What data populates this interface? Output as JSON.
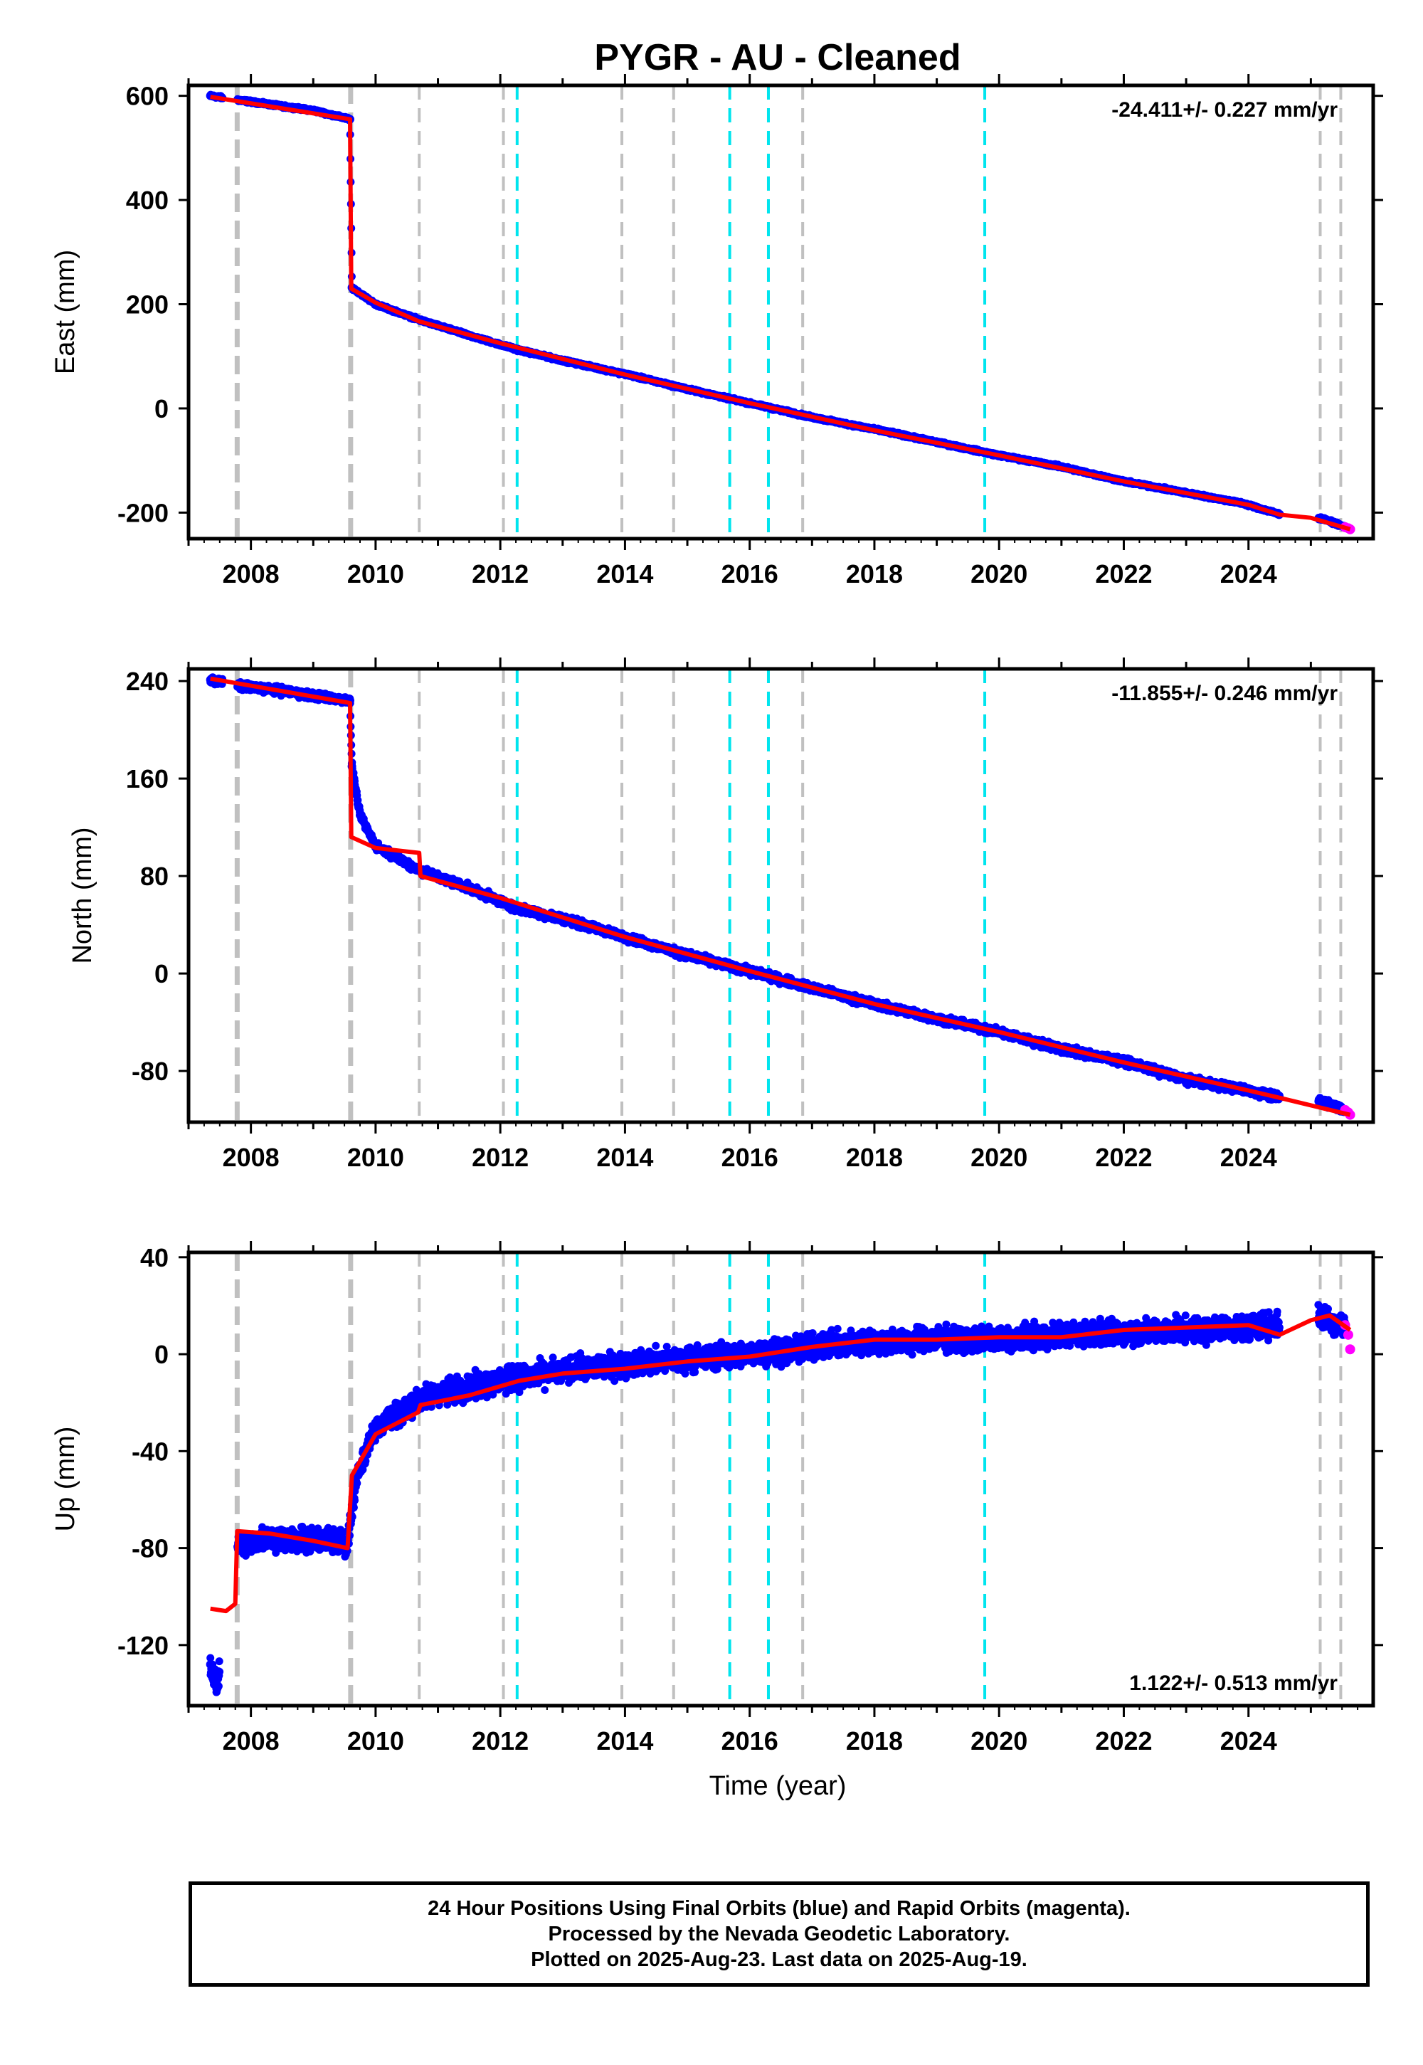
{
  "title": "PYGR  - AU - Cleaned",
  "colors": {
    "final": "#0000ff",
    "rapid": "#ff00ff",
    "model": "#ff0000",
    "equip_change": "#c0c0c0",
    "earthquake": "#00e5ee"
  },
  "x_axis": {
    "label": "Time (year)",
    "range": [
      2007.0,
      2026.0
    ],
    "tick_labels": [
      "2008",
      "2010",
      "2012",
      "2014",
      "2016",
      "2018",
      "2020",
      "2022",
      "2024"
    ]
  },
  "vertical_lines": {
    "equipment_changes": [
      2007.78,
      2009.6,
      2010.7,
      2012.05,
      2013.95,
      2014.78,
      2016.85,
      2025.15,
      2025.48
    ],
    "earthquakes": [
      2012.27,
      2015.68,
      2016.3,
      2019.77
    ]
  },
  "chart_data": [
    {
      "type": "scatter",
      "panel": "East",
      "ylabel": "East (mm)",
      "ylim": [
        -250,
        620
      ],
      "yticks": [
        "600",
        "400",
        "200",
        "0",
        "-200"
      ],
      "rate_label": "-24.411+/- 0.227 mm/yr",
      "series": [
        {
          "name": "Final Orbits (blue)",
          "points": [
            [
              2007.35,
              600
            ],
            [
              2007.8,
              592
            ],
            [
              2008.5,
              580
            ],
            [
              2009.0,
              572
            ],
            [
              2009.59,
              555
            ],
            [
              2009.62,
              232
            ],
            [
              2010.0,
              200
            ],
            [
              2010.7,
              170
            ],
            [
              2011.5,
              140
            ],
            [
              2012.3,
              112
            ],
            [
              2013.0,
              92
            ],
            [
              2014.0,
              66
            ],
            [
              2015.0,
              37
            ],
            [
              2016.0,
              10
            ],
            [
              2017.0,
              -17
            ],
            [
              2018.0,
              -40
            ],
            [
              2019.0,
              -65
            ],
            [
              2020.0,
              -90
            ],
            [
              2021.0,
              -112
            ],
            [
              2022.0,
              -140
            ],
            [
              2023.0,
              -162
            ],
            [
              2023.9,
              -182
            ],
            [
              2024.5,
              -203
            ],
            [
              2025.2,
              -212
            ],
            [
              2025.55,
              -228
            ]
          ]
        },
        {
          "name": "Rapid Orbits (magenta)",
          "points": [
            [
              2025.55,
              -228
            ],
            [
              2025.6,
              -230
            ],
            [
              2025.63,
              -232
            ]
          ]
        },
        {
          "name": "Model",
          "points": [
            [
              2007.35,
              598
            ],
            [
              2009.59,
              555
            ],
            [
              2009.61,
              230
            ],
            [
              2010.0,
              203
            ],
            [
              2010.7,
              167
            ],
            [
              2012.0,
              125
            ],
            [
              2014.0,
              65
            ],
            [
              2016.0,
              10
            ],
            [
              2018.0,
              -42
            ],
            [
              2020.0,
              -90
            ],
            [
              2022.0,
              -140
            ],
            [
              2024.0,
              -185
            ],
            [
              2024.5,
              -204
            ],
            [
              2025.0,
              -210
            ],
            [
              2025.63,
              -232
            ]
          ]
        }
      ]
    },
    {
      "type": "scatter",
      "panel": "North",
      "ylabel": "North (mm)",
      "ylim": [
        -122,
        250
      ],
      "yticks": [
        "240",
        "160",
        "80",
        "0",
        "-80"
      ],
      "rate_label": "-11.855+/- 0.246 mm/yr",
      "series": [
        {
          "name": "Final Orbits (blue)",
          "points": [
            [
              2007.35,
              241
            ],
            [
              2007.8,
              236
            ],
            [
              2008.5,
              232
            ],
            [
              2009.0,
              228
            ],
            [
              2009.59,
              224
            ],
            [
              2009.62,
              170
            ],
            [
              2009.75,
              130
            ],
            [
              2010.0,
              105
            ],
            [
              2010.7,
              85
            ],
            [
              2011.5,
              70
            ],
            [
              2012.3,
              53
            ],
            [
              2013.0,
              45
            ],
            [
              2014.0,
              30
            ],
            [
              2015.0,
              15
            ],
            [
              2016.0,
              2
            ],
            [
              2017.0,
              -12
            ],
            [
              2018.0,
              -25
            ],
            [
              2019.0,
              -37
            ],
            [
              2020.0,
              -48
            ],
            [
              2021.0,
              -62
            ],
            [
              2022.0,
              -72
            ],
            [
              2023.0,
              -87
            ],
            [
              2024.0,
              -96
            ],
            [
              2024.5,
              -102
            ],
            [
              2025.2,
              -105
            ],
            [
              2025.55,
              -112
            ]
          ]
        },
        {
          "name": "Rapid Orbits (magenta)",
          "points": [
            [
              2025.55,
              -112
            ],
            [
              2025.6,
              -114
            ],
            [
              2025.63,
              -116
            ]
          ]
        },
        {
          "name": "Model",
          "points": [
            [
              2007.35,
              242
            ],
            [
              2009.59,
              222
            ],
            [
              2009.61,
              112
            ],
            [
              2010.0,
              103
            ],
            [
              2010.7,
              99
            ],
            [
              2010.72,
              80
            ],
            [
              2012.0,
              62
            ],
            [
              2014.0,
              30
            ],
            [
              2016.0,
              2
            ],
            [
              2018.0,
              -25
            ],
            [
              2020.0,
              -48
            ],
            [
              2022.0,
              -73
            ],
            [
              2024.0,
              -96
            ],
            [
              2024.5,
              -102
            ],
            [
              2025.63,
              -116
            ]
          ]
        }
      ]
    },
    {
      "type": "scatter",
      "panel": "Up",
      "ylabel": "Up (mm)",
      "ylim": [
        -145,
        42
      ],
      "yticks": [
        "40",
        "0",
        "-40",
        "-80",
        "-120"
      ],
      "rate_label": "1.122+/- 0.513 mm/yr",
      "series": [
        {
          "name": "Final Orbits (blue)",
          "points": [
            [
              2007.35,
              -128
            ],
            [
              2007.45,
              -138
            ],
            [
              2007.8,
              -78
            ],
            [
              2008.5,
              -76
            ],
            [
              2009.0,
              -76
            ],
            [
              2009.55,
              -78
            ],
            [
              2009.7,
              -50
            ],
            [
              2010.0,
              -30
            ],
            [
              2010.5,
              -22
            ],
            [
              2011.0,
              -16
            ],
            [
              2012.0,
              -11
            ],
            [
              2013.0,
              -7
            ],
            [
              2014.0,
              -4
            ],
            [
              2015.0,
              -2
            ],
            [
              2016.0,
              0
            ],
            [
              2017.0,
              3
            ],
            [
              2018.0,
              5
            ],
            [
              2019.0,
              6
            ],
            [
              2020.0,
              6
            ],
            [
              2021.0,
              8
            ],
            [
              2022.0,
              9
            ],
            [
              2023.0,
              10
            ],
            [
              2024.0,
              11
            ],
            [
              2025.2,
              15
            ],
            [
              2025.55,
              12
            ]
          ]
        },
        {
          "name": "Rapid Orbits (magenta)",
          "points": [
            [
              2025.55,
              12
            ],
            [
              2025.6,
              8
            ],
            [
              2025.63,
              2
            ]
          ]
        },
        {
          "name": "Model",
          "points": [
            [
              2007.35,
              -105
            ],
            [
              2007.6,
              -106
            ],
            [
              2007.75,
              -103
            ],
            [
              2007.78,
              -73
            ],
            [
              2008.3,
              -74
            ],
            [
              2009.0,
              -77
            ],
            [
              2009.55,
              -80
            ],
            [
              2009.62,
              -50
            ],
            [
              2010.0,
              -33
            ],
            [
              2010.68,
              -24
            ],
            [
              2010.72,
              -21
            ],
            [
              2011.5,
              -17
            ],
            [
              2012.3,
              -11
            ],
            [
              2013.0,
              -8
            ],
            [
              2014.0,
              -6
            ],
            [
              2015.0,
              -3
            ],
            [
              2016.0,
              -1
            ],
            [
              2017.0,
              3
            ],
            [
              2018.0,
              6
            ],
            [
              2019.0,
              6
            ],
            [
              2020.0,
              7
            ],
            [
              2021.0,
              7
            ],
            [
              2022.0,
              10
            ],
            [
              2023.0,
              11
            ],
            [
              2024.0,
              12
            ],
            [
              2024.5,
              8
            ],
            [
              2025.0,
              14
            ],
            [
              2025.3,
              16
            ],
            [
              2025.63,
              10
            ]
          ]
        }
      ]
    }
  ],
  "footer": {
    "line1": "24 Hour Positions Using Final Orbits (blue) and Rapid Orbits (magenta).",
    "line2": "Processed by the Nevada Geodetic Laboratory.",
    "line3": "Plotted on 2025-Aug-23. Last data on 2025-Aug-19."
  }
}
